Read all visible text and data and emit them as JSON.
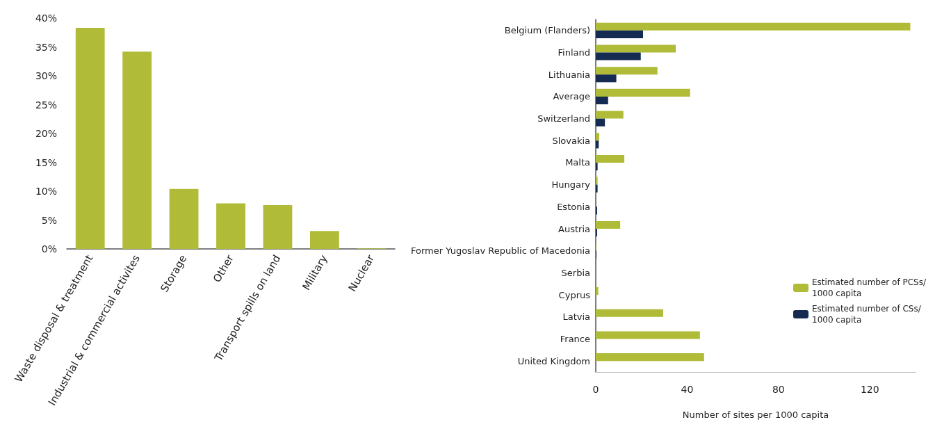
{
  "chart_data": [
    {
      "type": "bar",
      "categories": [
        "Waste disposal & treatment",
        "Industrial & commercial activites",
        "Storage",
        "Other",
        "Transport spills on land",
        "Military",
        "Nuclear"
      ],
      "values": [
        38.3,
        34.2,
        10.4,
        7.9,
        7.6,
        3.1,
        0.1
      ],
      "color": "#b0bc37",
      "ylim": [
        0,
        40
      ],
      "yticks": [
        {
          "value": 0,
          "label": "0%"
        },
        {
          "value": 5,
          "label": "5%"
        },
        {
          "value": 10,
          "label": "10%"
        },
        {
          "value": 15,
          "label": "15%"
        },
        {
          "value": 20,
          "label": "20%"
        },
        {
          "value": 25,
          "label": "25%"
        },
        {
          "value": 30,
          "label": "30%"
        },
        {
          "value": 35,
          "label": "35%"
        },
        {
          "value": 40,
          "label": "40%"
        }
      ],
      "grid": false,
      "legend": false
    },
    {
      "type": "bar",
      "orientation": "horizontal",
      "xlabel": "Number of sites per 1000 capita",
      "categories": [
        "Belgium (Flanders)",
        "Finland",
        "Lithuania",
        "Average",
        "Switzerland",
        "Slovakia",
        "Malta",
        "Hungary",
        "Estonia",
        "Austria",
        "Former Yugoslav Republic of Macedonia",
        "Serbia",
        "Cyprus",
        "Latvia",
        "France",
        "United Kingdom"
      ],
      "series": [
        {
          "name": "Estimated number of PCSs/ 1000 capita",
          "color": "#b0bc37",
          "values": [
            137.7,
            35,
            27,
            41.3,
            12.1,
            1.5,
            12.5,
            0.8,
            0,
            10.7,
            0.2,
            0,
            1.1,
            29.5,
            45.6,
            47.4
          ]
        },
        {
          "name": "Estimated number of CSs/ 1000 capita",
          "color": "#152b52",
          "values": [
            20.7,
            19.7,
            9,
            5.4,
            4,
            1.3,
            0.8,
            0.8,
            0.6,
            0.6,
            0.3,
            0,
            0,
            0,
            0,
            0
          ]
        }
      ],
      "xlim": [
        0,
        140
      ],
      "xticks": [
        0,
        40,
        80,
        120
      ],
      "grid": false,
      "legend": "bottom right"
    }
  ]
}
